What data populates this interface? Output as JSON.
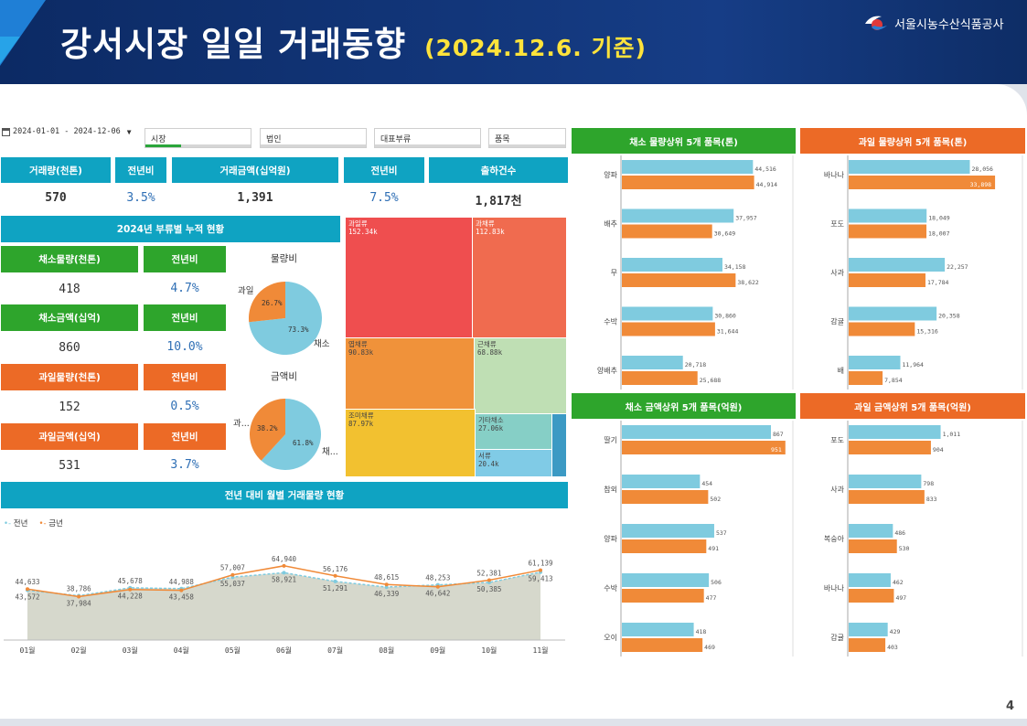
{
  "header": {
    "title": "강서시장 일일 거래동향",
    "date_label": "(2024.12.6. 기준)",
    "org_name": "서울시농수산식품공사"
  },
  "page_number": "4",
  "filters": {
    "date_range": "2024-01-01 - 2024-12-06",
    "market": "시장",
    "corp": "법인",
    "category": "대표부류",
    "item": "품목"
  },
  "kpi": {
    "volume_label": "거래량(천톤)",
    "volume": "570",
    "volume_yoy_label": "전년비",
    "volume_yoy": "3.5%",
    "amount_label": "거래금액(십억원)",
    "amount": "1,391",
    "amount_yoy_label": "전년비",
    "amount_yoy": "7.5%",
    "shipments_label": "출하건수",
    "shipments": "1,817천"
  },
  "cumulative": {
    "title": "2024년 부류별 누적 현황",
    "veg_volume_label": "채소물량(천톤)",
    "veg_volume": "418",
    "veg_volume_yoy_label": "전년비",
    "veg_volume_yoy": "4.7%",
    "veg_amount_label": "채소금액(십억)",
    "veg_amount": "860",
    "veg_amount_yoy_label": "전년비",
    "veg_amount_yoy": "10.0%",
    "fruit_volume_label": "과일물량(천톤)",
    "fruit_volume": "152",
    "fruit_volume_yoy_label": "전년비",
    "fruit_volume_yoy": "0.5%",
    "fruit_amount_label": "과일금액(십억)",
    "fruit_amount": "531",
    "fruit_amount_yoy_label": "전년비",
    "fruit_amount_yoy": "3.7%"
  },
  "pies": {
    "volume": {
      "title": "물량비",
      "fruit_label": "과일",
      "veg_label": "채소",
      "fruit_pct": "26.7%",
      "veg_pct": "73.3%",
      "fruit": 26.7,
      "veg": 73.3
    },
    "amount": {
      "title": "금액비",
      "fruit_label": "과...",
      "veg_label": "채...",
      "fruit_pct": "38.2%",
      "veg_pct": "61.8%",
      "fruit": 38.2,
      "veg": 61.8
    }
  },
  "treemap": [
    {
      "name": "과일류",
      "value": "152.34k",
      "color": "#ef4e4f"
    },
    {
      "name": "과채류",
      "value": "112.83k",
      "color": "#f06b4f"
    },
    {
      "name": "엽채류",
      "value": "90.83k",
      "color": "#f0923a"
    },
    {
      "name": "근채류",
      "value": "68.88k",
      "color": "#bfdfb4"
    },
    {
      "name": "조미채류",
      "value": "87.97k",
      "color": "#f2c130"
    },
    {
      "name": "기타채소",
      "value": "27.06k",
      "color": "#86cfc6"
    },
    {
      "name": "서류",
      "value": "20.4k",
      "color": "#80cbe6"
    }
  ],
  "monthly": {
    "title": "전년 대비 월별 거래물량 현황",
    "legend_prev": "전년",
    "legend_curr": "금년",
    "colors": {
      "prev": "#7fcbdf",
      "curr": "#f08a38",
      "area": "#d6d8cc"
    }
  },
  "right_titles": {
    "veg_vol": "채소 물량상위 5개 품목(톤)",
    "fruit_vol": "과일 물량상위 5개 품목(톤)",
    "veg_amt": "채소 금액상위 5개 품목(억원)",
    "fruit_amt": "과일 금액상위 5개 품목(억원)"
  },
  "chart_data": [
    {
      "type": "line",
      "title": "전년 대비 월별 거래물량 현황",
      "categories": [
        "01월",
        "02월",
        "03월",
        "04월",
        "05월",
        "06월",
        "07월",
        "08월",
        "09월",
        "10월",
        "11월"
      ],
      "series": [
        {
          "name": "전년",
          "values": [
            43572,
            38786,
            45678,
            44988,
            55037,
            58921,
            51291,
            46339,
            48253,
            50385,
            59413
          ]
        },
        {
          "name": "금년",
          "values": [
            44633,
            37984,
            44228,
            43458,
            57007,
            64940,
            56176,
            48615,
            46642,
            52381,
            61139
          ]
        }
      ],
      "ylim": [
        0,
        70000
      ]
    },
    {
      "type": "bar",
      "title": "채소 물량상위 5개 품목(톤)",
      "categories": [
        "양파",
        "배추",
        "무",
        "수박",
        "양배추"
      ],
      "series": [
        {
          "name": "전년",
          "values": [
            44516,
            37957,
            34158,
            30860,
            20718
          ]
        },
        {
          "name": "금년",
          "values": [
            44914,
            30649,
            38622,
            31644,
            25688
          ]
        }
      ],
      "xlim": [
        0,
        50000
      ]
    },
    {
      "type": "bar",
      "title": "과일 물량상위 5개 품목(톤)",
      "categories": [
        "바나나",
        "포도",
        "사과",
        "감귤",
        "배"
      ],
      "series": [
        {
          "name": "전년",
          "values": [
            28056,
            18049,
            22257,
            20358,
            11964
          ]
        },
        {
          "name": "금년",
          "values": [
            33898,
            18007,
            17784,
            15316,
            7854
          ]
        }
      ],
      "xlim": [
        0,
        36000
      ]
    },
    {
      "type": "bar",
      "title": "채소 금액상위 5개 품목(억원)",
      "categories": [
        "딸기",
        "참외",
        "양파",
        "수박",
        "오이"
      ],
      "series": [
        {
          "name": "전년",
          "values": [
            867,
            454,
            537,
            506,
            418
          ]
        },
        {
          "name": "금년",
          "values": [
            951,
            502,
            491,
            477,
            469
          ]
        }
      ],
      "xlim": [
        0,
        1000
      ]
    },
    {
      "type": "bar",
      "title": "과일 금액상위 5개 품목(억원)",
      "categories": [
        "포도",
        "사과",
        "복숭아",
        "바나나",
        "감귤"
      ],
      "series": [
        {
          "name": "전년",
          "values": [
            1011,
            798,
            486,
            462,
            429
          ]
        },
        {
          "name": "금년",
          "values": [
            904,
            833,
            530,
            497,
            403
          ]
        }
      ],
      "xlim": [
        0,
        1900
      ]
    }
  ]
}
